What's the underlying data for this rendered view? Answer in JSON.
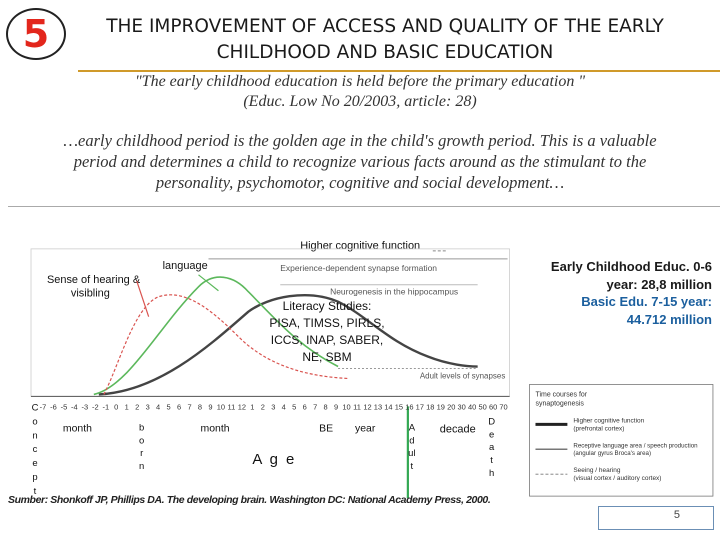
{
  "slide_number_badge": "5",
  "title_line1": "THE IMPROVEMENT OF ACCESS AND QUALITY OF THE EARLY",
  "title_line2": "CHILDHOOD AND BASIC EDUCATION",
  "quote_line1": "\"The early childhood education  is held before  the primary education \"",
  "quote_line2": "(Educ. Low No 20/2003, article: 28)",
  "para_line1": "…early childhood period is the golden age in the child's growth period. This is a valuable",
  "para_line2": "period and determines a child to recognize various facts around as the stimulant to the",
  "para_line3": "personality, psychomotor, cognitive and social  development…",
  "figure": {
    "higher_cognitive": "Higher cognitive function",
    "language": "language",
    "sense": "Sense of hearing &",
    "visibling": "visibling",
    "synapse_formation": "Experience-dependent synapse formation",
    "neurogenesis": "Neurogenesis in the hippocampus",
    "adult_levels": "Adult levels of synapses",
    "literacy_line1": "Literacy Studies:",
    "literacy_line2": "PISA, TIMSS, PIRLS,",
    "literacy_line3": "ICCS, INAP, SABER,",
    "literacy_line4": "NE, SBM",
    "ticks": [
      "-7",
      "-6",
      "-5",
      "-4",
      "-3",
      "-2",
      "-1",
      "0",
      "1",
      "2",
      "3",
      "4",
      "5",
      "6",
      "7",
      "8",
      "9",
      "10",
      "11",
      "12",
      "1",
      "2",
      "3",
      "4",
      "5",
      "6",
      "7",
      "8",
      "9",
      "10",
      "11",
      "12",
      "13",
      "14",
      "15",
      "16",
      "17",
      "18",
      "19",
      "20",
      "30",
      "40",
      "50",
      "60",
      "70"
    ],
    "month1": "month",
    "month2": "month",
    "year": "year",
    "decade": "decade",
    "be": "BE",
    "age": "A g e",
    "conception_letters": [
      "C",
      "o",
      "n",
      "c",
      "e",
      "p",
      "t"
    ],
    "born_letters": [
      "b",
      "o",
      "r",
      "n"
    ],
    "adult_letters": [
      "A",
      "d",
      "ul",
      "t"
    ],
    "death_letters": [
      "D",
      "e",
      "a",
      "t",
      "h"
    ],
    "legend_title1": "Time courses for",
    "legend_title2": "synaptogenesis",
    "legend_item1a": "Higher cognitive function",
    "legend_item1b": "(prefrontal cortex)",
    "legend_item2a": "Receptive language area / speech production",
    "legend_item2b": "(angular gyrus Broca's area)",
    "legend_item3a": "Seeing / hearing",
    "legend_item3b": "(visual cortex / auditory cortex)"
  },
  "stats_line1": "Early Childhood  Educ. 0-6",
  "stats_line2": "year: 28,8 million",
  "stats_line3": "Basic Edu. 7-15 year:",
  "stats_line4": "44.712 million",
  "source": "Sumber: Shonkoff JP, Phillips DA. The developing brain. Washington DC: National Academy Press, 2000.",
  "page_number": "5",
  "colors": {
    "badge_number": "#e3261c",
    "rule": "#d09a2a",
    "stats_blue": "#1b5f9e",
    "curve_green": "#5cb85c",
    "curve_red": "#d9534f",
    "adult_line_green": "#33a853"
  }
}
